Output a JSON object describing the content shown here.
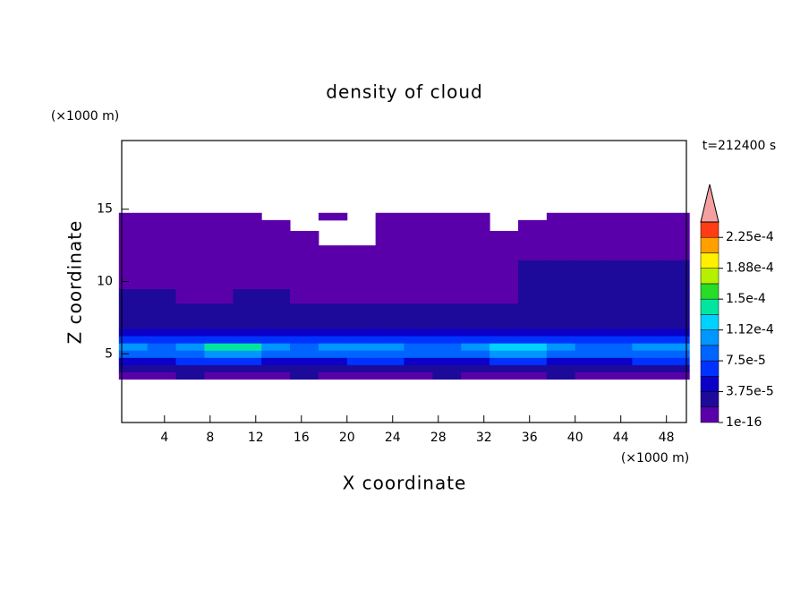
{
  "chart_data": {
    "type": "contour",
    "title": "density of cloud",
    "x_label": "X coordinate",
    "y_label": "Z coordinate",
    "x_unit": "(×1000 m)",
    "y_unit": "(×1000 m)",
    "time_label": "t=212400 s",
    "xlim": [
      0.25,
      49.75
    ],
    "ylim": [
      0.25,
      19.75
    ],
    "xticks": [
      4,
      8,
      12,
      16,
      20,
      24,
      28,
      32,
      36,
      40,
      44,
      48
    ],
    "yticks": [
      5,
      10,
      15
    ],
    "x": [
      1.25,
      3.75,
      6.25,
      8.75,
      11.25,
      13.75,
      16.25,
      18.75,
      21.25,
      23.75,
      26.25,
      28.75,
      31.25,
      33.75,
      36.25,
      38.75,
      41.25,
      43.75,
      46.25,
      48.75
    ],
    "y": [
      3.5,
      4,
      4.5,
      5,
      5.5,
      6,
      6.5,
      7,
      8,
      9,
      10,
      11,
      12,
      13,
      14,
      14.5
    ],
    "z": [
      [
        1.2e-05,
        1.2e-05,
        2e-05,
        1.2e-05,
        1.2e-05,
        1.2e-05,
        2e-05,
        1.2e-05,
        1.2e-05,
        1.2e-05,
        1.2e-05,
        2e-05,
        1.2e-05,
        1.2e-05,
        1.2e-05,
        2e-05,
        1.2e-05,
        1.2e-05,
        1.2e-05,
        1.2e-05
      ],
      [
        3e-05,
        2.5e-05,
        3e-05,
        3e-05,
        3e-05,
        2.5e-05,
        3e-05,
        3e-05,
        3e-05,
        2.5e-05,
        3e-05,
        3e-05,
        3e-05,
        3e-05,
        2.5e-05,
        3e-05,
        3e-05,
        3e-05,
        2.5e-05,
        3e-05
      ],
      [
        5.5e-05,
        5.5e-05,
        7e-05,
        7e-05,
        7e-05,
        5.5e-05,
        5.5e-05,
        5.5e-05,
        7e-05,
        7e-05,
        5.5e-05,
        5.5e-05,
        5.5e-05,
        7e-05,
        7e-05,
        5.5e-05,
        5.5e-05,
        5.5e-05,
        7e-05,
        7e-05
      ],
      [
        9e-05,
        8e-05,
        9e-05,
        0.00011,
        0.00011,
        8e-05,
        8e-05,
        9e-05,
        9e-05,
        9e-05,
        8e-05,
        8e-05,
        9e-05,
        0.0001,
        0.0001,
        9e-05,
        8e-05,
        8e-05,
        9e-05,
        9e-05
      ],
      [
        0.0001,
        9e-05,
        0.0001,
        0.00014,
        0.00014,
        0.0001,
        9e-05,
        0.0001,
        0.0001,
        0.0001,
        9e-05,
        9e-05,
        0.0001,
        0.00012,
        0.00012,
        0.0001,
        9e-05,
        9e-05,
        0.0001,
        0.0001
      ],
      [
        6.5e-05,
        6.5e-05,
        7.5e-05,
        7.5e-05,
        6.5e-05,
        6.5e-05,
        7.5e-05,
        6.5e-05,
        6.5e-05,
        6.5e-05,
        7.5e-05,
        6.5e-05,
        6.5e-05,
        7.5e-05,
        6.5e-05,
        6.5e-05,
        6.5e-05,
        7.5e-05,
        6.5e-05,
        6.5e-05
      ],
      [
        4e-05,
        4e-05,
        4e-05,
        4.5e-05,
        4e-05,
        4e-05,
        4e-05,
        4e-05,
        4.5e-05,
        4e-05,
        4e-05,
        4e-05,
        4e-05,
        4e-05,
        4e-05,
        4.5e-05,
        4e-05,
        5e-05,
        4e-05,
        4e-05
      ],
      [
        3e-05,
        3e-05,
        2.5e-05,
        3e-05,
        3e-05,
        3e-05,
        3e-05,
        3e-05,
        3e-05,
        2.5e-05,
        3e-05,
        3e-05,
        3e-05,
        3e-05,
        3e-05,
        3e-05,
        3e-05,
        3e-05,
        3e-05,
        3e-05
      ],
      [
        2.2e-05,
        2.2e-05,
        2.2e-05,
        2.2e-05,
        2.2e-05,
        2.2e-05,
        2.2e-05,
        2.2e-05,
        2.2e-05,
        2.2e-05,
        2.2e-05,
        2.2e-05,
        2.2e-05,
        2.2e-05,
        2.2e-05,
        2.2e-05,
        2.2e-05,
        2.2e-05,
        2.2e-05,
        2.2e-05
      ],
      [
        2e-05,
        2e-05,
        1.5e-05,
        1.5e-05,
        2e-05,
        2e-05,
        1.5e-05,
        1.5e-05,
        1.5e-05,
        1.5e-05,
        1.5e-05,
        1.5e-05,
        1.5e-05,
        1.5e-05,
        2e-05,
        2e-05,
        2e-05,
        2e-05,
        2e-05,
        2e-05
      ],
      [
        1.5e-05,
        1.2e-05,
        1.2e-05,
        1.2e-05,
        1.2e-05,
        1.2e-05,
        1.2e-05,
        1.2e-05,
        1.2e-05,
        1.2e-05,
        1.2e-05,
        1.2e-05,
        1.2e-05,
        1.5e-05,
        2.2e-05,
        2.2e-05,
        2.2e-05,
        2.2e-05,
        2.2e-05,
        2e-05
      ],
      [
        8e-06,
        8e-06,
        8e-06,
        8e-06,
        8e-06,
        8e-06,
        8e-06,
        8e-06,
        8e-06,
        8e-06,
        8e-06,
        8e-06,
        8e-06,
        8e-06,
        2e-05,
        2e-05,
        2e-05,
        2e-05,
        2e-05,
        2e-05
      ],
      [
        6e-06,
        6e-06,
        6e-06,
        6e-06,
        6e-06,
        6e-06,
        6e-06,
        6e-06,
        6e-06,
        6e-06,
        6e-06,
        6e-06,
        6e-06,
        6e-06,
        6e-06,
        6e-06,
        6e-06,
        6e-06,
        6e-06,
        6e-06
      ],
      [
        5e-06,
        5e-06,
        5e-06,
        5e-06,
        5e-06,
        5e-06,
        5e-06,
        null,
        null,
        5e-06,
        5e-06,
        5e-06,
        5e-06,
        5e-06,
        5e-06,
        5e-06,
        5e-06,
        5e-06,
        5e-06,
        5e-06
      ],
      [
        5e-06,
        5e-06,
        5e-06,
        5e-06,
        5e-06,
        5e-06,
        null,
        null,
        null,
        5e-06,
        5e-06,
        5e-06,
        5e-06,
        null,
        5e-06,
        5e-06,
        5e-06,
        5e-06,
        5e-06,
        5e-06
      ],
      [
        5e-06,
        5e-06,
        5e-06,
        5e-06,
        5e-06,
        null,
        null,
        5e-06,
        null,
        5e-06,
        5e-06,
        5e-06,
        5e-06,
        null,
        null,
        5e-06,
        5e-06,
        5e-06,
        5e-06,
        5e-06
      ]
    ],
    "colorbar": {
      "clim": [
        1e-16,
        0.00024375
      ],
      "ticks": [
        {
          "value": 1e-16,
          "label": "1e-16"
        },
        {
          "value": 3.75e-05,
          "label": "3.75e-5"
        },
        {
          "value": 7.5e-05,
          "label": "7.5e-5"
        },
        {
          "value": 0.0001125,
          "label": "1.12e-4"
        },
        {
          "value": 0.00015,
          "label": "1.5e-4"
        },
        {
          "value": 0.0001875,
          "label": "1.88e-4"
        },
        {
          "value": 0.000225,
          "label": "2.25e-4"
        }
      ],
      "colors": [
        "#5a00aa",
        "#1e0a9a",
        "#0a00c8",
        "#0032ff",
        "#0064ff",
        "#0096ff",
        "#00d2ff",
        "#00e6a0",
        "#28dc28",
        "#b4f000",
        "#fff000",
        "#ffa000",
        "#ff3c14"
      ],
      "over_color": "#f4a0a0"
    }
  }
}
